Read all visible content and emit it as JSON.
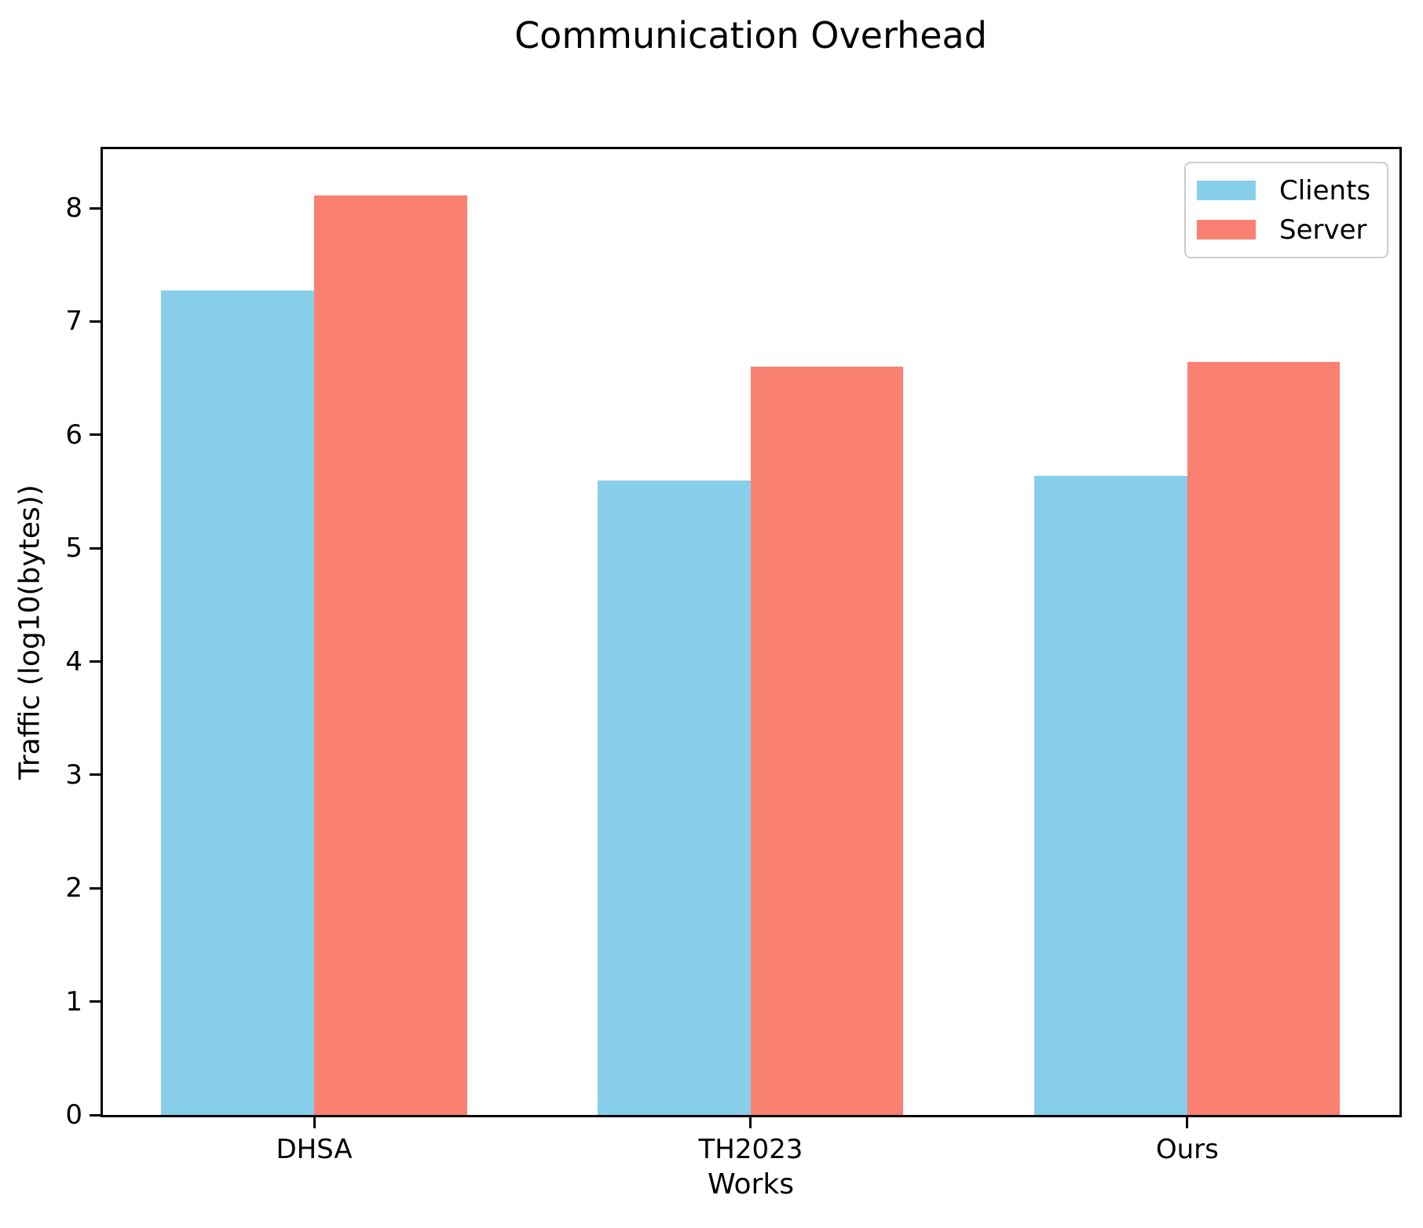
{
  "title": "Communication Overhead",
  "chart_data": {
    "type": "bar",
    "title": "Communication Overhead",
    "xlabel": "Works",
    "ylabel": "Traffic (log10(bytes))",
    "categories": [
      "DHSA",
      "TH2023",
      "Ours"
    ],
    "series": [
      {
        "name": "Clients",
        "color": "#87CEEB",
        "values": [
          7.27,
          5.6,
          5.64
        ]
      },
      {
        "name": "Server",
        "color": "#FA8072",
        "values": [
          8.11,
          6.6,
          6.64
        ]
      }
    ],
    "ylim": [
      0,
      8.52
    ],
    "yticks": [
      0,
      1,
      2,
      3,
      4,
      5,
      6,
      7,
      8
    ],
    "bar_width_units": 0.35,
    "legend_position": "upper right",
    "grid": false,
    "axis_color": "#000000",
    "background_color": "#ffffff"
  }
}
